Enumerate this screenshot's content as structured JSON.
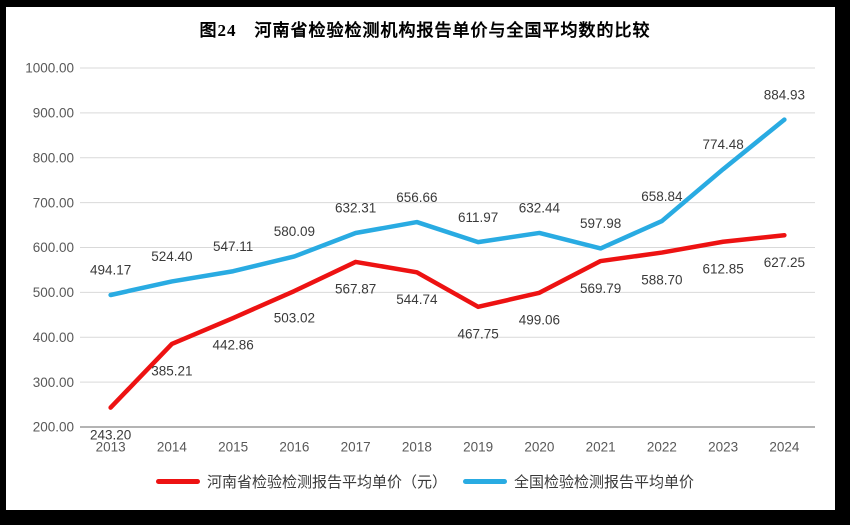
{
  "title": "图24　河南省检验检测机构报告单价与全国平均数的比较",
  "chart_data": {
    "type": "line",
    "categories": [
      "2013",
      "2014",
      "2015",
      "2016",
      "2017",
      "2018",
      "2019",
      "2020",
      "2021",
      "2022",
      "2023",
      "2024"
    ],
    "series": [
      {
        "name": "河南省检验检测报告平均单价（元）",
        "color": "#ed1212",
        "label_position": "below",
        "values": [
          243.2,
          385.21,
          442.86,
          503.02,
          567.87,
          544.74,
          467.75,
          499.06,
          569.79,
          588.7,
          612.85,
          627.25
        ]
      },
      {
        "name": "全国检验检测报告平均单价",
        "color": "#29abe2",
        "label_position": "above",
        "values": [
          494.17,
          524.4,
          547.11,
          580.09,
          632.31,
          656.66,
          611.97,
          632.44,
          597.98,
          658.84,
          774.48,
          884.93
        ]
      }
    ],
    "title": "图24　河南省检验检测机构报告单价与全国平均数的比较",
    "xlabel": "",
    "ylabel": "",
    "ylim": [
      200,
      1000
    ],
    "y_tick_step": 100,
    "y_tick_labels": [
      "1000.00",
      "900.00",
      "800.00",
      "700.00",
      "600.00",
      "500.00",
      "400.00",
      "300.00",
      "200.00"
    ],
    "grid": true,
    "legend_position": "bottom",
    "style": {
      "gridline_color": "#d9d9d9",
      "axis_line_color": "#9b9b9b",
      "tick_label_color": "#595959",
      "data_label_color": "#3a3a3a",
      "frame_color": "#000000"
    }
  }
}
